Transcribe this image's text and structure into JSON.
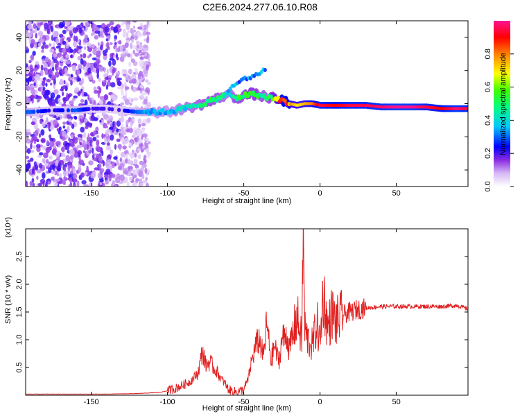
{
  "title": "C2E6.2024.277.06.10.R08",
  "chart_data": [
    {
      "type": "heatmap",
      "title": "",
      "xlabel": "Height of straight line (km)",
      "ylabel": "Frequency (Hz)",
      "xlim": [
        -193,
        97
      ],
      "ylim": [
        -50,
        50
      ],
      "xticks": [
        -150,
        -100,
        -50,
        0,
        50
      ],
      "yticks": [
        -40,
        -20,
        0,
        20,
        40
      ],
      "colorbar": {
        "label": "Normalized spectral amplitude",
        "range": [
          0.0,
          1.0
        ],
        "ticks": [
          0.0,
          0.2,
          0.4,
          0.6,
          0.8
        ],
        "colors": [
          "#ffffff",
          "#d6b8f5",
          "#8a2be2",
          "#0000ff",
          "#00c8ff",
          "#00ff80",
          "#40ff00",
          "#ffff00",
          "#ff8000",
          "#ff0000",
          "#ff1493"
        ]
      },
      "ridge": {
        "height_km": [
          -190,
          -175,
          -160,
          -150,
          -140,
          -130,
          -120,
          -110,
          -100,
          -90,
          -80,
          -70,
          -60,
          -55,
          -50,
          -45,
          -40,
          -35,
          -30,
          -25,
          -20,
          -15,
          -10,
          -5,
          0,
          10,
          20,
          30,
          40,
          50,
          60,
          70,
          80,
          90,
          95
        ],
        "frequency_hz": [
          -5,
          -4,
          -4,
          -3,
          -3,
          -4,
          -5,
          -5,
          -5,
          -3,
          -1,
          2,
          6,
          3,
          5,
          6,
          5,
          4,
          3,
          2,
          0,
          -1,
          0,
          0,
          -1,
          -1,
          -1,
          -1,
          -2,
          -2,
          -2,
          -2,
          -3,
          -3,
          -3
        ],
        "amplitude": [
          0.3,
          0.2,
          0.3,
          0.2,
          0.2,
          0.2,
          0.3,
          0.35,
          0.35,
          0.4,
          0.45,
          0.5,
          0.4,
          0.5,
          0.5,
          0.55,
          0.5,
          0.45,
          0.6,
          0.9,
          0.8,
          0.7,
          0.75,
          0.8,
          0.95,
          0.9,
          0.95,
          0.95,
          0.97,
          1.0,
          1.0,
          0.95,
          0.9,
          0.98,
          0.95
        ]
      },
      "upper_branch": {
        "height_km": [
          -60,
          -55,
          -50,
          -45,
          -40,
          -35
        ],
        "frequency_hz": [
          8,
          12,
          15,
          16,
          18,
          22
        ]
      },
      "noise_region_km": [
        -193,
        -120
      ]
    },
    {
      "type": "line",
      "title": "",
      "xlabel": "Height of straight line (km)",
      "ylabel": "SNR (10 * v/v)",
      "multiplier": "(x10⁴)",
      "xlim": [
        -193,
        97
      ],
      "ylim": [
        0,
        3.0
      ],
      "xticks": [
        -150,
        -100,
        -50,
        0,
        50
      ],
      "yticks": [
        0.5,
        1.0,
        1.5,
        2.0,
        2.5
      ],
      "series": [
        {
          "color": "#e02020",
          "x": [
            -193,
            -180,
            -160,
            -140,
            -120,
            -105,
            -100,
            -95,
            -90,
            -85,
            -80,
            -77,
            -75,
            -72,
            -70,
            -67,
            -65,
            -62,
            -60,
            -55,
            -50,
            -47,
            -45,
            -42,
            -40,
            -37,
            -35,
            -32,
            -30,
            -27,
            -25,
            -22,
            -20,
            -17,
            -15,
            -12,
            -11,
            -10,
            -8,
            -5,
            -2,
            0,
            2,
            5,
            8,
            10,
            15,
            20,
            25,
            30,
            40,
            50,
            60,
            70,
            80,
            90,
            97
          ],
          "y": [
            0.02,
            0.02,
            0.02,
            0.02,
            0.03,
            0.05,
            0.08,
            0.12,
            0.18,
            0.25,
            0.4,
            0.8,
            0.55,
            0.6,
            0.5,
            0.4,
            0.3,
            0.2,
            0.1,
            0.06,
            0.1,
            0.3,
            0.6,
            0.9,
            1.0,
            0.7,
            1.3,
            0.6,
            0.9,
            0.6,
            1.0,
            1.1,
            0.8,
            1.2,
            1.4,
            1.0,
            2.95,
            1.2,
            1.0,
            0.9,
            1.3,
            0.9,
            1.85,
            1.2,
            1.5,
            1.3,
            1.45,
            1.5,
            1.55,
            1.57,
            1.6,
            1.6,
            1.6,
            1.6,
            1.6,
            1.62,
            1.55
          ]
        }
      ]
    }
  ]
}
